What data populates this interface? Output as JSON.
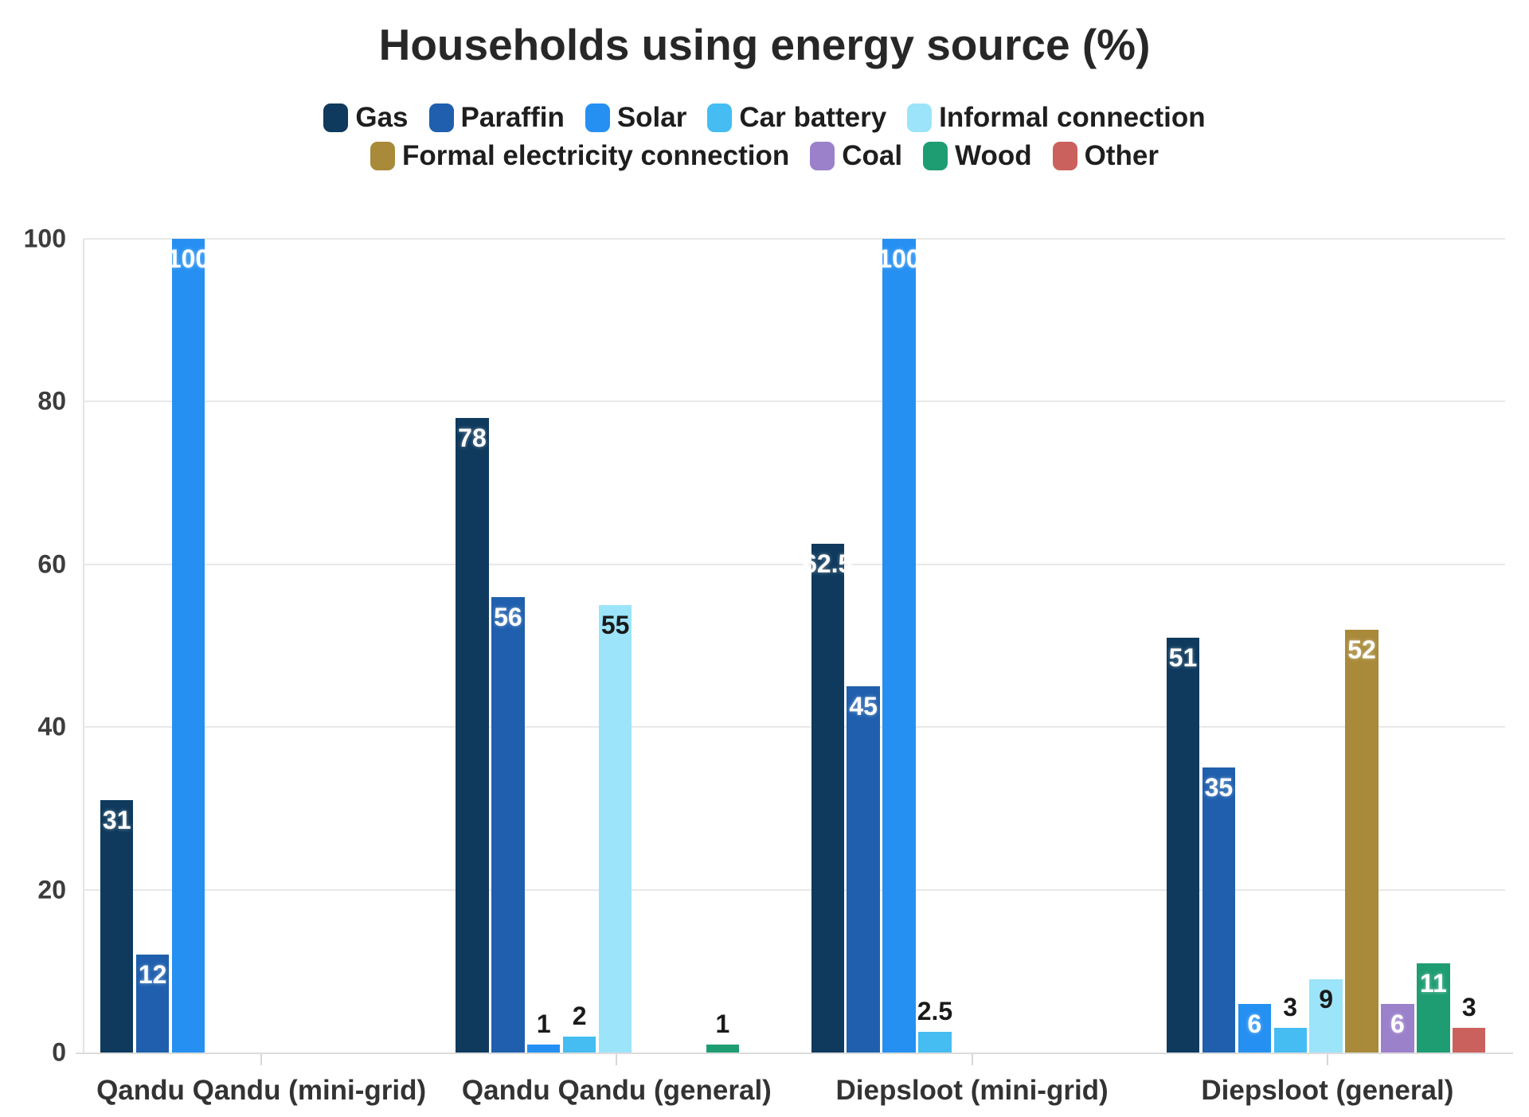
{
  "chart_data": {
    "type": "bar",
    "title": "Households using energy source (%)",
    "categories": [
      "Qandu Qandu (mini-grid)",
      "Qandu Qandu (general)",
      "Diepsloot (mini-grid)",
      "Diepsloot (general)"
    ],
    "series": [
      {
        "name": "Gas",
        "color": "#0f3a5d",
        "values": [
          31,
          78,
          62.5,
          51
        ]
      },
      {
        "name": "Paraffin",
        "color": "#1f5fad",
        "values": [
          12,
          56,
          45,
          35
        ]
      },
      {
        "name": "Solar",
        "color": "#2590f2",
        "values": [
          100,
          1,
          100,
          6
        ]
      },
      {
        "name": "Car battery",
        "color": "#45bdf2",
        "values": [
          null,
          2,
          2.5,
          3
        ]
      },
      {
        "name": "Informal connection",
        "color": "#9ce4fa",
        "values": [
          null,
          55,
          null,
          9
        ],
        "light_label": true
      },
      {
        "name": "Formal electricity connection",
        "color": "#a98a3a",
        "values": [
          null,
          null,
          null,
          52
        ]
      },
      {
        "name": "Coal",
        "color": "#9b80ca",
        "values": [
          null,
          null,
          null,
          6
        ]
      },
      {
        "name": "Wood",
        "color": "#1f9d72",
        "values": [
          null,
          1,
          null,
          11
        ]
      },
      {
        "name": "Other",
        "color": "#cb615c",
        "values": [
          null,
          null,
          null,
          3
        ]
      }
    ],
    "ylabel": "",
    "xlabel": "",
    "ylim": [
      0,
      100
    ],
    "yticks": [
      0,
      20,
      40,
      60,
      80,
      100
    ],
    "grid": "horizontal",
    "legend_position": "top",
    "legend_rows": [
      [
        0,
        1,
        2,
        3,
        4
      ],
      [
        5,
        6,
        7,
        8
      ]
    ]
  }
}
